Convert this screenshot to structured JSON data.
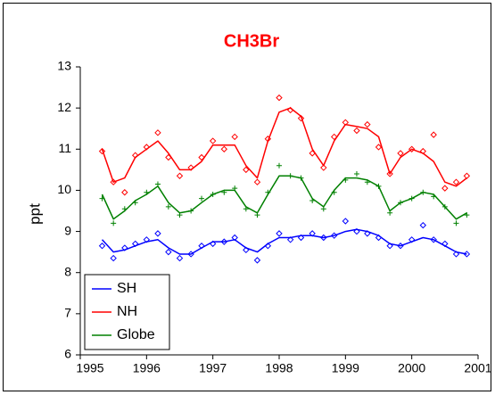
{
  "chart_data": {
    "type": "scatter-fit",
    "title": "CH3Br",
    "ylabel": "ppt",
    "xlim": [
      1995,
      2001
    ],
    "xticks": [
      1995,
      1996,
      1997,
      1998,
      1999,
      2000,
      2001
    ],
    "ylim": [
      6,
      13
    ],
    "yticks": [
      6,
      7,
      8,
      9,
      10,
      11,
      12,
      13
    ],
    "legend": "lower left",
    "x": [
      1995.33,
      1995.5,
      1995.67,
      1995.83,
      1996.0,
      1996.17,
      1996.33,
      1996.5,
      1996.67,
      1996.83,
      1997.0,
      1997.17,
      1997.33,
      1997.5,
      1997.67,
      1997.83,
      1998.0,
      1998.17,
      1998.33,
      1998.5,
      1998.67,
      1998.83,
      1999.0,
      1999.17,
      1999.33,
      1999.5,
      1999.67,
      1999.83,
      2000.0,
      2000.17,
      2000.33,
      2000.5,
      2000.67,
      2000.83
    ],
    "series": [
      {
        "name": "SH",
        "color": "#0000ff",
        "marker": "diamond",
        "values": [
          8.65,
          8.35,
          8.6,
          8.7,
          8.8,
          8.95,
          8.5,
          8.35,
          8.45,
          8.65,
          8.7,
          8.75,
          8.85,
          8.55,
          8.3,
          8.65,
          8.95,
          8.8,
          8.85,
          8.95,
          8.85,
          8.9,
          9.25,
          9.0,
          8.95,
          8.85,
          8.65,
          8.65,
          8.8,
          9.15,
          8.8,
          8.7,
          8.45,
          8.45
        ],
        "fit": [
          8.8,
          8.5,
          8.55,
          8.65,
          8.75,
          8.8,
          8.6,
          8.45,
          8.45,
          8.6,
          8.75,
          8.75,
          8.8,
          8.6,
          8.5,
          8.7,
          8.85,
          8.85,
          8.9,
          8.9,
          8.85,
          8.9,
          9.0,
          9.05,
          9.0,
          8.9,
          8.7,
          8.65,
          8.75,
          8.85,
          8.8,
          8.65,
          8.5,
          8.45
        ]
      },
      {
        "name": "NH",
        "color": "#ff0000",
        "marker": "diamond",
        "values": [
          10.95,
          10.2,
          9.95,
          10.85,
          11.05,
          11.4,
          10.8,
          10.35,
          10.55,
          10.8,
          11.2,
          11.0,
          11.3,
          10.5,
          10.2,
          11.25,
          12.25,
          11.95,
          11.75,
          10.9,
          10.55,
          11.3,
          11.65,
          11.45,
          11.6,
          11.05,
          10.4,
          10.9,
          11.0,
          10.95,
          11.35,
          10.05,
          10.2,
          10.35
        ],
        "fit": [
          11.0,
          10.2,
          10.3,
          10.8,
          11.0,
          11.2,
          10.9,
          10.5,
          10.5,
          10.7,
          11.1,
          11.1,
          11.1,
          10.6,
          10.3,
          11.2,
          11.9,
          12.0,
          11.8,
          11.0,
          10.6,
          11.2,
          11.6,
          11.55,
          11.5,
          11.3,
          10.4,
          10.8,
          11.0,
          10.9,
          10.7,
          10.2,
          10.1,
          10.3
        ]
      },
      {
        "name": "Globe",
        "color": "#008000",
        "marker": "plus",
        "values": [
          9.8,
          9.2,
          9.55,
          9.7,
          9.95,
          10.15,
          9.6,
          9.4,
          9.5,
          9.8,
          9.9,
          9.95,
          10.05,
          9.55,
          9.4,
          9.95,
          10.6,
          10.35,
          10.3,
          9.75,
          9.55,
          9.95,
          10.25,
          10.4,
          10.2,
          10.1,
          9.45,
          9.7,
          9.8,
          9.95,
          9.85,
          9.6,
          9.2,
          9.4
        ],
        "fit": [
          9.9,
          9.3,
          9.5,
          9.75,
          9.9,
          10.1,
          9.7,
          9.45,
          9.5,
          9.7,
          9.9,
          10.0,
          10.0,
          9.6,
          9.45,
          9.9,
          10.35,
          10.35,
          10.3,
          9.8,
          9.6,
          10.0,
          10.3,
          10.3,
          10.25,
          10.1,
          9.5,
          9.7,
          9.8,
          9.95,
          9.9,
          9.6,
          9.3,
          9.45
        ]
      }
    ]
  }
}
